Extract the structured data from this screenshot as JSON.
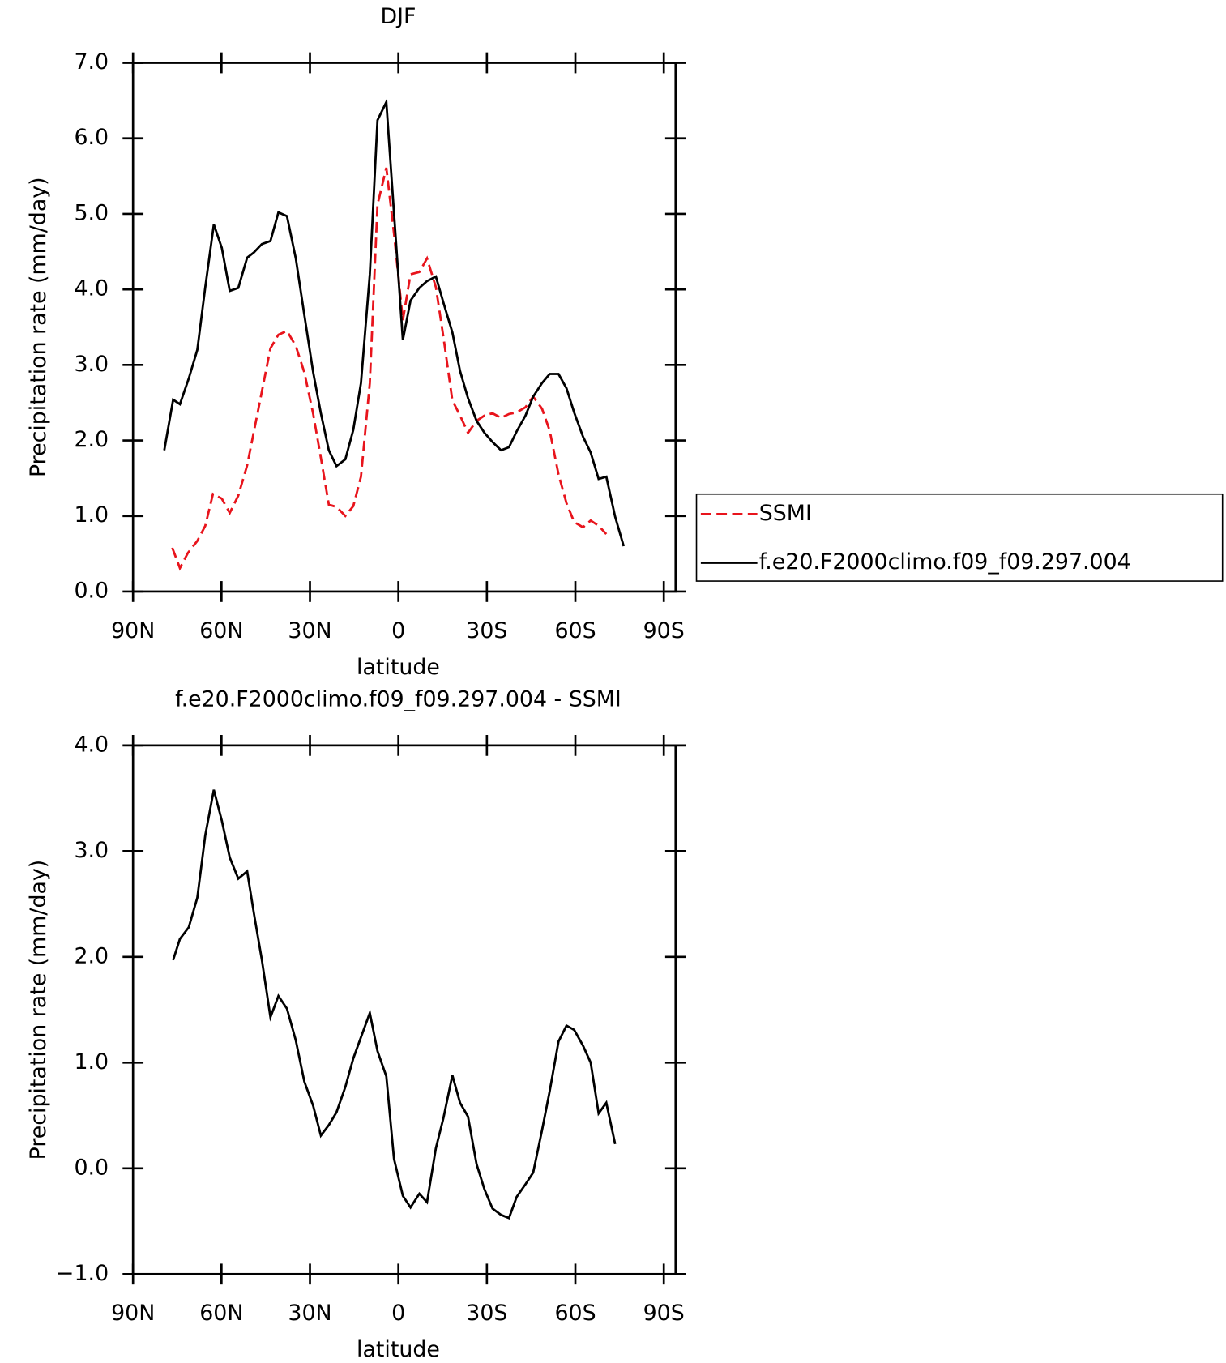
{
  "chart_data": [
    {
      "type": "line",
      "title": "DJF",
      "xlabel": "latitude",
      "ylabel": "Precipitation rate (mm/day)",
      "xlim": [
        90,
        -94
      ],
      "xticks": [
        {
          "value": 90,
          "label": "90N"
        },
        {
          "value": 60,
          "label": "60N"
        },
        {
          "value": 30,
          "label": "30N"
        },
        0,
        {
          "value": -30,
          "label": "30S"
        },
        {
          "value": -60,
          "label": "60S"
        },
        {
          "value": -90,
          "label": "90S"
        }
      ],
      "ylim": [
        0,
        7
      ],
      "yticks": [
        {
          "value": 0,
          "label": "0.0"
        },
        {
          "value": 1,
          "label": "1.0"
        },
        {
          "value": 2,
          "label": "2.0"
        },
        {
          "value": 3,
          "label": "3.0"
        },
        {
          "value": 4,
          "label": "4.0"
        },
        {
          "value": 5,
          "label": "5.0"
        },
        {
          "value": 6,
          "label": "6.0"
        },
        {
          "value": 7,
          "label": "7.0"
        }
      ],
      "legend": "right",
      "series": [
        {
          "name": "SSMI",
          "color": "#e8141c",
          "style": "dashed",
          "x": [
            76.7,
            74.1,
            71.4,
            68.2,
            65.5,
            62.9,
            59.9,
            57.2,
            54.3,
            51.3,
            49.0,
            46.3,
            43.4,
            40.7,
            37.8,
            34.8,
            31.9,
            28.9,
            26.3,
            23.6,
            21.0,
            18.0,
            15.3,
            12.7,
            9.7,
            7.1,
            4.1,
            1.5,
            -1.5,
            -4.1,
            -7.1,
            -9.7,
            -12.7,
            -15.3,
            -18.3,
            -20.9,
            -23.6,
            -26.5,
            -29.2,
            -31.9,
            -34.8,
            -37.5,
            -40.1,
            -43.1,
            -45.7,
            -48.7,
            -51.3,
            -54.3,
            -57.0,
            -59.6,
            -62.6,
            -65.2,
            -67.9,
            -70.5
          ],
          "values": [
            0.58,
            0.31,
            0.51,
            0.67,
            0.87,
            1.29,
            1.23,
            1.04,
            1.27,
            1.67,
            2.12,
            2.65,
            3.22,
            3.4,
            3.45,
            3.25,
            2.9,
            2.35,
            1.77,
            1.15,
            1.12,
            1.0,
            1.13,
            1.52,
            2.76,
            5.12,
            5.61,
            4.74,
            3.59,
            4.2,
            4.23,
            4.41,
            4.03,
            3.36,
            2.53,
            2.33,
            2.1,
            2.26,
            2.33,
            2.36,
            2.3,
            2.35,
            2.37,
            2.44,
            2.58,
            2.42,
            2.13,
            1.55,
            1.17,
            0.92,
            0.85,
            0.94,
            0.87,
            0.76
          ]
        },
        {
          "name": "f.e20.F2000climo.f09_f09.297.004",
          "color": "#000000",
          "style": "solid",
          "x": [
            79.4,
            76.4,
            74.1,
            71.1,
            68.2,
            65.5,
            62.6,
            59.9,
            57.2,
            54.3,
            51.3,
            49.0,
            46.3,
            43.4,
            40.7,
            37.8,
            34.8,
            31.9,
            28.9,
            26.3,
            23.6,
            21.0,
            18.0,
            15.3,
            12.7,
            9.7,
            7.1,
            4.1,
            1.5,
            -1.5,
            -4.1,
            -7.1,
            -9.7,
            -12.7,
            -15.3,
            -18.3,
            -20.9,
            -23.6,
            -26.5,
            -29.2,
            -31.9,
            -34.8,
            -37.5,
            -40.1,
            -43.1,
            -45.7,
            -48.7,
            -51.3,
            -54.3,
            -57.0,
            -59.6,
            -62.6,
            -65.2,
            -67.9,
            -70.5,
            -73.5,
            -76.4
          ],
          "values": [
            1.87,
            2.54,
            2.48,
            2.82,
            3.2,
            4.03,
            4.86,
            4.55,
            3.98,
            4.02,
            4.42,
            4.49,
            4.6,
            4.64,
            5.02,
            4.97,
            4.41,
            3.66,
            2.9,
            2.36,
            1.87,
            1.66,
            1.75,
            2.14,
            2.76,
            4.2,
            6.24,
            6.48,
            5.01,
            3.33,
            3.85,
            4.02,
            4.11,
            4.17,
            3.82,
            3.43,
            2.92,
            2.56,
            2.26,
            2.1,
            1.98,
            1.87,
            1.91,
            2.12,
            2.33,
            2.58,
            2.76,
            2.88,
            2.88,
            2.69,
            2.37,
            2.05,
            1.84,
            1.49,
            1.52,
            0.99,
            0.6
          ]
        }
      ]
    },
    {
      "type": "line",
      "title": "f.e20.F2000climo.f09_f09.297.004 - SSMI",
      "xlabel": "latitude",
      "ylabel": "Precipitation rate (mm/day)",
      "xlim": [
        90,
        -94
      ],
      "xticks": [
        {
          "value": 90,
          "label": "90N"
        },
        {
          "value": 60,
          "label": "60N"
        },
        {
          "value": 30,
          "label": "30N"
        },
        0,
        {
          "value": -30,
          "label": "30S"
        },
        {
          "value": -60,
          "label": "60S"
        },
        {
          "value": -90,
          "label": "90S"
        }
      ],
      "ylim": [
        -1,
        4
      ],
      "yticks": [
        {
          "value": -1,
          "label": "−1.0"
        },
        {
          "value": 0,
          "label": "0.0"
        },
        {
          "value": 1,
          "label": "1.0"
        },
        {
          "value": 2,
          "label": "2.0"
        },
        {
          "value": 3,
          "label": "3.0"
        },
        {
          "value": 4,
          "label": "4.0"
        }
      ],
      "series": [
        {
          "color": "#000000",
          "style": "solid",
          "x": [
            76.4,
            74.1,
            71.1,
            68.2,
            65.5,
            62.6,
            59.9,
            57.2,
            54.3,
            51.3,
            49.0,
            46.3,
            43.4,
            40.7,
            37.8,
            34.8,
            31.9,
            28.9,
            26.3,
            23.6,
            21.0,
            18.0,
            15.3,
            12.7,
            9.7,
            7.1,
            4.1,
            1.5,
            -1.5,
            -4.1,
            -7.1,
            -9.7,
            -12.7,
            -15.3,
            -18.3,
            -20.9,
            -23.6,
            -26.5,
            -29.2,
            -31.9,
            -34.8,
            -37.5,
            -40.1,
            -43.1,
            -45.7,
            -48.7,
            -51.3,
            -54.3,
            -57.0,
            -59.6,
            -62.6,
            -65.2,
            -67.9,
            -70.5,
            -73.5
          ],
          "values": [
            1.97,
            2.17,
            2.28,
            2.56,
            3.15,
            3.58,
            3.29,
            2.94,
            2.74,
            2.81,
            2.41,
            1.97,
            1.43,
            1.63,
            1.51,
            1.21,
            0.82,
            0.59,
            0.31,
            0.41,
            0.53,
            0.77,
            1.04,
            1.24,
            1.47,
            1.11,
            0.87,
            0.09,
            -0.26,
            -0.37,
            -0.24,
            -0.32,
            0.19,
            0.48,
            0.88,
            0.62,
            0.49,
            0.04,
            -0.2,
            -0.38,
            -0.44,
            -0.47,
            -0.27,
            -0.15,
            -0.04,
            0.36,
            0.73,
            1.2,
            1.35,
            1.31,
            1.16,
            1.0,
            0.52,
            0.62,
            0.23
          ]
        }
      ]
    }
  ]
}
